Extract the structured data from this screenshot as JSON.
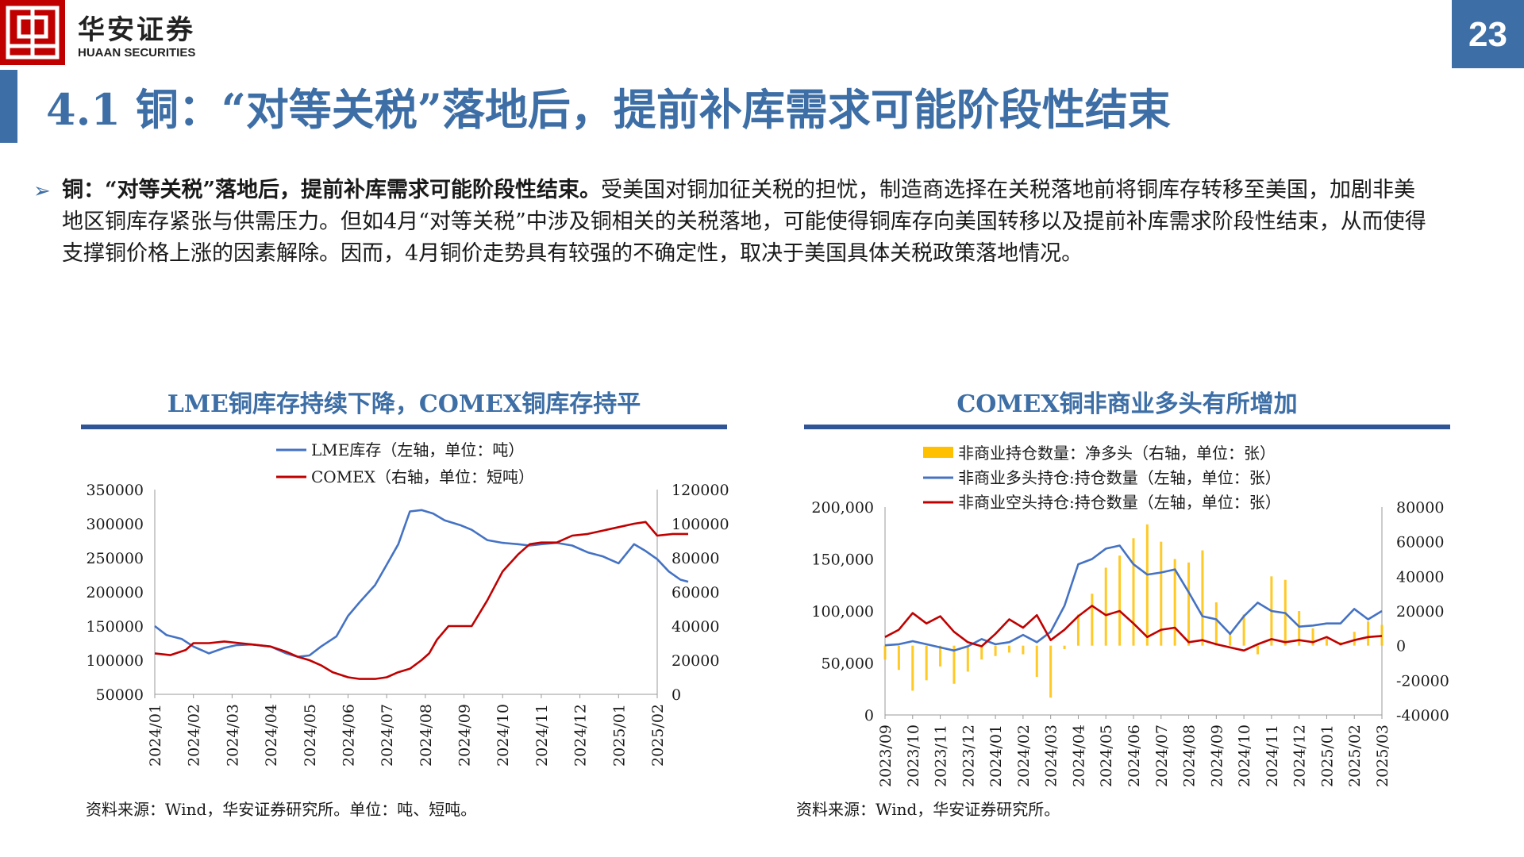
{
  "header": {
    "logo_cn": "华安证券",
    "logo_en": "HUAAN SECURITIES",
    "page_number": "23",
    "title": "4.1 铜：“对等关税”落地后，提前补库需求可能阶段性结束",
    "brand_color": "#3d6ea5",
    "logo_color": "#c00000"
  },
  "bullet": {
    "lead": "铜：“对等关税”落地后，提前补库需求可能阶段性结束。",
    "text": "受美国对铜加征关税的担忧，制造商选择在关税落地前将铜库存转移至美国，加剧非美地区铜库存紧张与供需压力。但如4月“对等关税”中涉及铜相关的关税落地，可能使得铜库存向美国转移以及提前补库需求阶段性结束，从而使得支撑铜价格上涨的因素解除。因而，4月铜价走势具有较强的不确定性，取决于美国具体关税政策落地情况。"
  },
  "chart_data": [
    {
      "type": "line",
      "title": "LME铜库存持续下降，COMEX铜库存持平",
      "x_labels": [
        "2024/01",
        "2024/02",
        "2024/03",
        "2024/04",
        "2024/05",
        "2024/06",
        "2024/07",
        "2024/08",
        "2024/09",
        "2024/10",
        "2024/11",
        "2024/12",
        "2025/01",
        "2025/02"
      ],
      "y_left": {
        "min": 50000,
        "max": 350000,
        "ticks": [
          "350000",
          "300000",
          "250000",
          "200000",
          "150000",
          "100000",
          "50000"
        ]
      },
      "y_right": {
        "min": 0,
        "max": 120000,
        "ticks": [
          "120000",
          "100000",
          "80000",
          "60000",
          "40000",
          "20000",
          "0"
        ]
      },
      "series": [
        {
          "name": "LME库存（左轴，单位：吨）",
          "axis": "left",
          "color": "#4472c4",
          "x": [
            0,
            0.3,
            0.7,
            1,
            1.4,
            1.8,
            2.1,
            2.5,
            3,
            3.4,
            3.7,
            4,
            4.3,
            4.7,
            5,
            5.3,
            5.7,
            6,
            6.3,
            6.6,
            6.9,
            7.2,
            7.5,
            7.9,
            8.2,
            8.6,
            9,
            9.4,
            9.7,
            10,
            10.4,
            10.8,
            11.2,
            11.6,
            12,
            12.4,
            12.7,
            13,
            13.3,
            13.6,
            13.8
          ],
          "values": [
            150000,
            137000,
            131000,
            120000,
            110000,
            118000,
            122000,
            123000,
            120000,
            110000,
            105000,
            107000,
            120000,
            135000,
            165000,
            185000,
            210000,
            240000,
            270000,
            318000,
            320000,
            315000,
            305000,
            298000,
            291000,
            276000,
            272000,
            270000,
            268000,
            270000,
            272000,
            268000,
            258000,
            252000,
            242000,
            270000,
            260000,
            248000,
            230000,
            218000,
            215000
          ]
        },
        {
          "name": "COMEX（右轴，单位：短吨）",
          "axis": "right",
          "color": "#c00000",
          "x": [
            0,
            0.4,
            0.8,
            1,
            1.4,
            1.8,
            2.2,
            2.6,
            3,
            3.4,
            3.7,
            4,
            4.3,
            4.6,
            5,
            5.3,
            5.7,
            6,
            6.3,
            6.6,
            6.9,
            7.1,
            7.3,
            7.6,
            7.9,
            8.2,
            8.6,
            9,
            9.4,
            9.7,
            10,
            10.4,
            10.8,
            11.2,
            11.6,
            12,
            12.4,
            12.7,
            13,
            13.4,
            13.8
          ],
          "values": [
            24000,
            23000,
            26000,
            30000,
            30000,
            31000,
            30000,
            29000,
            28000,
            25000,
            22000,
            20000,
            17000,
            13000,
            10000,
            9000,
            9000,
            10000,
            13000,
            15000,
            20000,
            24000,
            32000,
            40000,
            40000,
            40000,
            55000,
            72000,
            82000,
            88000,
            89000,
            89000,
            93000,
            94000,
            96000,
            98000,
            100000,
            101000,
            93000,
            94000,
            94000
          ]
        }
      ],
      "source": "资料来源：Wind，华安证券研究所。单位：吨、短吨。"
    },
    {
      "type": "bar+line",
      "title": "COMEX铜非商业多头有所增加",
      "x_labels": [
        "2023/09",
        "2023/10",
        "2023/11",
        "2023/12",
        "2024/01",
        "2024/02",
        "2024/03",
        "2024/04",
        "2024/05",
        "2024/06",
        "2024/07",
        "2024/08",
        "2024/09",
        "2024/10",
        "2024/11",
        "2024/12",
        "2025/01",
        "2025/02",
        "2025/03"
      ],
      "y_left": {
        "min": 0,
        "max": 200000,
        "ticks": [
          "200,000",
          "150,000",
          "100,000",
          "50,000",
          "0"
        ]
      },
      "y_right": {
        "min": -40000,
        "max": 80000,
        "ticks": [
          "80000",
          "60000",
          "40000",
          "20000",
          "0",
          "-20000",
          "-40000"
        ]
      },
      "bars": {
        "name": "非商业持仓数量：净多头（右轴，单位：张）",
        "axis": "right",
        "color": "#ffc000",
        "x": [
          0,
          0.5,
          1,
          1.5,
          2,
          2.5,
          3,
          3.5,
          4,
          4.5,
          5,
          5.5,
          6,
          6.5,
          7,
          7.5,
          8,
          8.5,
          9,
          9.5,
          10,
          10.5,
          11,
          11.5,
          12,
          12.5,
          13,
          13.5,
          14,
          14.5,
          15,
          15.5,
          16,
          16.5,
          17,
          17.5,
          18
        ],
        "values": [
          -8000,
          -14000,
          -26000,
          -20000,
          -12000,
          -22000,
          -15000,
          -8000,
          -6000,
          -4000,
          -5000,
          -18000,
          -30000,
          -2000,
          18000,
          30000,
          45000,
          52000,
          62000,
          70000,
          60000,
          50000,
          48000,
          55000,
          25000,
          8000,
          18000,
          -5000,
          40000,
          38000,
          20000,
          10000,
          4000,
          2000,
          8000,
          14000,
          12000
        ]
      },
      "series": [
        {
          "name": "非商业多头持仓:持仓数量（左轴，单位：张）",
          "axis": "left",
          "color": "#4472c4",
          "x": [
            0,
            0.5,
            1,
            1.5,
            2,
            2.5,
            3,
            3.5,
            4,
            4.5,
            5,
            5.5,
            6,
            6.5,
            7,
            7.5,
            8,
            8.5,
            9,
            9.5,
            10,
            10.5,
            11,
            11.5,
            12,
            12.5,
            13,
            13.5,
            14,
            14.5,
            15,
            15.5,
            16,
            16.5,
            17,
            17.5,
            18
          ],
          "values": [
            67000,
            68000,
            71000,
            68000,
            65000,
            62000,
            66000,
            73000,
            68000,
            70000,
            77000,
            70000,
            80000,
            105000,
            145000,
            150000,
            160000,
            163000,
            145000,
            135000,
            137000,
            140000,
            118000,
            95000,
            92000,
            78000,
            95000,
            108000,
            100000,
            98000,
            85000,
            86000,
            88000,
            88000,
            102000,
            92000,
            100000
          ]
        },
        {
          "name": "非商业空头持仓:持仓数量（左轴，单位：张）",
          "axis": "left",
          "color": "#c00000",
          "x": [
            0,
            0.5,
            1,
            1.5,
            2,
            2.5,
            3,
            3.5,
            4,
            4.5,
            5,
            5.5,
            6,
            6.5,
            7,
            7.5,
            8,
            8.5,
            9,
            9.5,
            10,
            10.5,
            11,
            11.5,
            12,
            12.5,
            13,
            13.5,
            14,
            14.5,
            15,
            15.5,
            16,
            16.5,
            17,
            17.5,
            18
          ],
          "values": [
            75000,
            82000,
            98000,
            88000,
            95000,
            80000,
            70000,
            66000,
            78000,
            92000,
            84000,
            96000,
            72000,
            82000,
            95000,
            105000,
            96000,
            100000,
            88000,
            75000,
            82000,
            84000,
            70000,
            72000,
            68000,
            65000,
            62000,
            68000,
            73000,
            70000,
            72000,
            70000,
            75000,
            68000,
            72000,
            75000,
            76000
          ]
        }
      ],
      "source": "资料来源：Wind，华安证券研究所。"
    }
  ]
}
